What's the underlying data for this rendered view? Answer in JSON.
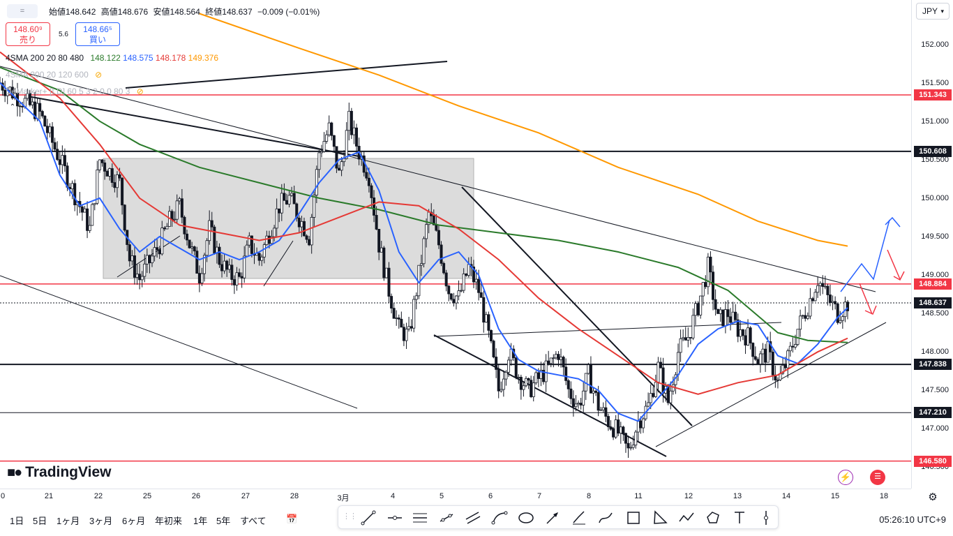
{
  "colors": {
    "sma200": "#2a7a2a",
    "sma20": "#2962ff",
    "sma80": "#e53935",
    "sma480": "#ff9800",
    "red_line": "#f23645",
    "black_line": "#131722",
    "box_fill": "#d6d6d6",
    "current": "#131722"
  },
  "header": {
    "symbol_icon": "=",
    "ohlc": {
      "open_label": "始値",
      "open": "148.642",
      "high_label": "高値",
      "high": "148.676",
      "low_label": "安値",
      "low": "148.564",
      "close_label": "終値",
      "close": "148.637",
      "change": "−0.009 (−0.01%)"
    },
    "sell_price": "148.60⁹",
    "sell_label": "売り",
    "buy_price": "148.66⁵",
    "buy_label": "買い",
    "spread": "5.6",
    "indicators": [
      {
        "name": "4SMA 200 20 80 480",
        "values": [
          "148.122",
          "148.575",
          "148.178",
          "149.376"
        ]
      },
      {
        "name": "4SMA 200 20 120 600",
        "values": []
      },
      {
        "name": "DeMarker+ [LD] 60 5 3 2 0 0 80 3",
        "values": []
      }
    ]
  },
  "currency": "JPY",
  "price_axis": {
    "ticks": [
      "152.000",
      "151.500",
      "151.000",
      "150.500",
      "150.000",
      "149.500",
      "149.000",
      "148.500",
      "148.000",
      "147.500",
      "147.000",
      "146.500"
    ],
    "tags": [
      {
        "label": "151.343",
        "color": "#f23645"
      },
      {
        "label": "150.608",
        "color": "#131722"
      },
      {
        "label": "148.884",
        "color": "#f23645"
      },
      {
        "label": "148.637",
        "color": "#131722"
      },
      {
        "label": "147.838",
        "color": "#131722"
      },
      {
        "label": "147.210",
        "color": "#131722"
      },
      {
        "label": "146.580",
        "color": "#f23645"
      }
    ]
  },
  "time_axis": [
    "0",
    "21",
    "22",
    "25",
    "26",
    "27",
    "28",
    "3月",
    "4",
    "5",
    "6",
    "7",
    "8",
    "11",
    "12",
    "13",
    "14",
    "15",
    "18"
  ],
  "brand": {
    "name": "TradingView"
  },
  "bottom": {
    "ranges": [
      "1日",
      "5日",
      "1ヶ月",
      "3ヶ月",
      "6ヶ月",
      "年初来",
      "1年",
      "5年",
      "すべて"
    ],
    "clock": "05:26:10 UTC+9"
  },
  "chart_data": {
    "type": "candlestick",
    "title": "",
    "ylim": [
      146.45,
      152.35
    ],
    "x_labels": [
      "0",
      "21",
      "22",
      "25",
      "26",
      "27",
      "28",
      "3月",
      "4",
      "5",
      "6",
      "7",
      "8",
      "11",
      "12",
      "13",
      "14",
      "15",
      "18"
    ],
    "horizontal_levels": [
      151.343,
      150.608,
      148.884,
      147.838,
      147.21,
      146.58
    ],
    "current_price": 148.637,
    "price_path": [
      [
        0,
        151.5
      ],
      [
        4,
        151.1
      ],
      [
        6,
        150.5
      ],
      [
        8,
        149.9
      ],
      [
        9,
        149.6
      ],
      [
        10,
        150.5
      ],
      [
        12,
        150.2
      ],
      [
        13,
        149.2
      ],
      [
        14,
        148.95
      ],
      [
        16,
        149.4
      ],
      [
        17,
        149.7
      ],
      [
        18,
        149.9
      ],
      [
        19,
        149.4
      ],
      [
        20,
        149.0
      ],
      [
        21,
        149.6
      ],
      [
        22,
        149.2
      ],
      [
        23,
        149.0
      ],
      [
        24,
        148.95
      ],
      [
        25,
        149.4
      ],
      [
        26,
        149.2
      ],
      [
        27,
        149.55
      ],
      [
        28,
        149.9
      ],
      [
        29,
        150.0
      ],
      [
        31,
        149.5
      ],
      [
        32,
        150.6
      ],
      [
        33,
        150.9
      ],
      [
        34,
        150.3
      ],
      [
        35,
        151.0
      ],
      [
        36,
        150.6
      ],
      [
        37,
        150.3
      ],
      [
        38,
        149.4
      ],
      [
        39,
        148.8
      ],
      [
        40,
        148.3
      ],
      [
        41,
        148.2
      ],
      [
        42,
        149.0
      ],
      [
        43,
        149.8
      ],
      [
        44,
        149.4
      ],
      [
        45,
        148.8
      ],
      [
        46,
        148.7
      ],
      [
        47,
        149.1
      ],
      [
        48,
        148.8
      ],
      [
        49,
        148.2
      ],
      [
        50,
        147.5
      ],
      [
        51,
        148.0
      ],
      [
        52,
        147.7
      ],
      [
        53,
        147.5
      ],
      [
        55,
        147.8
      ],
      [
        56,
        148.0
      ],
      [
        57,
        147.5
      ],
      [
        58,
        147.3
      ],
      [
        59,
        147.7
      ],
      [
        60,
        147.3
      ],
      [
        61,
        147.1
      ],
      [
        62,
        146.95
      ],
      [
        63,
        146.7
      ],
      [
        64,
        147.1
      ],
      [
        65,
        147.3
      ],
      [
        66,
        147.8
      ],
      [
        67,
        147.35
      ],
      [
        68,
        148.0
      ],
      [
        69,
        148.2
      ],
      [
        70,
        148.6
      ],
      [
        71,
        149.1
      ],
      [
        72,
        148.4
      ],
      [
        73,
        148.5
      ],
      [
        74,
        148.3
      ],
      [
        75,
        148.2
      ],
      [
        76,
        147.9
      ],
      [
        77,
        148.0
      ],
      [
        78,
        147.6
      ],
      [
        79,
        147.9
      ],
      [
        80,
        148.3
      ],
      [
        81,
        148.6
      ],
      [
        82,
        148.95
      ],
      [
        83,
        148.7
      ],
      [
        84,
        148.5
      ],
      [
        85,
        148.637
      ]
    ],
    "series": [
      {
        "name": "SMA 200",
        "color": "#2a7a2a",
        "values": [
          [
            0,
            151.7
          ],
          [
            6,
            151.4
          ],
          [
            10,
            151.0
          ],
          [
            14,
            150.7
          ],
          [
            20,
            150.4
          ],
          [
            26,
            150.2
          ],
          [
            32,
            150.0
          ],
          [
            38,
            149.85
          ],
          [
            44,
            149.65
          ],
          [
            50,
            149.55
          ],
          [
            56,
            149.45
          ],
          [
            62,
            149.3
          ],
          [
            68,
            149.1
          ],
          [
            73,
            148.8
          ],
          [
            78,
            148.25
          ],
          [
            81,
            148.15
          ],
          [
            85,
            148.122
          ]
        ]
      },
      {
        "name": "SMA 20",
        "color": "#2962ff",
        "values": [
          [
            0,
            151.5
          ],
          [
            4,
            151.0
          ],
          [
            6,
            150.3
          ],
          [
            8,
            149.9
          ],
          [
            10,
            150.0
          ],
          [
            12,
            149.6
          ],
          [
            14,
            149.3
          ],
          [
            16,
            149.5
          ],
          [
            18,
            149.35
          ],
          [
            20,
            149.2
          ],
          [
            22,
            149.3
          ],
          [
            24,
            149.2
          ],
          [
            26,
            149.3
          ],
          [
            28,
            149.45
          ],
          [
            30,
            149.8
          ],
          [
            32,
            150.2
          ],
          [
            34,
            150.5
          ],
          [
            36,
            150.6
          ],
          [
            38,
            150.1
          ],
          [
            40,
            149.3
          ],
          [
            42,
            148.9
          ],
          [
            44,
            149.2
          ],
          [
            46,
            149.3
          ],
          [
            48,
            149.0
          ],
          [
            50,
            148.3
          ],
          [
            52,
            147.9
          ],
          [
            54,
            147.75
          ],
          [
            56,
            147.7
          ],
          [
            58,
            147.65
          ],
          [
            60,
            147.5
          ],
          [
            62,
            147.2
          ],
          [
            64,
            147.1
          ],
          [
            66,
            147.4
          ],
          [
            68,
            147.7
          ],
          [
            70,
            148.1
          ],
          [
            72,
            148.3
          ],
          [
            74,
            148.4
          ],
          [
            76,
            148.35
          ],
          [
            78,
            147.95
          ],
          [
            80,
            147.85
          ],
          [
            82,
            148.1
          ],
          [
            84,
            148.45
          ],
          [
            85,
            148.575
          ]
        ]
      },
      {
        "name": "SMA 80",
        "color": "#e53935",
        "values": [
          [
            0,
            151.9
          ],
          [
            6,
            151.3
          ],
          [
            10,
            150.7
          ],
          [
            14,
            150.0
          ],
          [
            18,
            149.65
          ],
          [
            22,
            149.55
          ],
          [
            26,
            149.45
          ],
          [
            30,
            149.55
          ],
          [
            34,
            149.75
          ],
          [
            38,
            149.95
          ],
          [
            42,
            149.9
          ],
          [
            46,
            149.6
          ],
          [
            50,
            149.2
          ],
          [
            54,
            148.7
          ],
          [
            58,
            148.3
          ],
          [
            62,
            147.95
          ],
          [
            66,
            147.6
          ],
          [
            70,
            147.45
          ],
          [
            74,
            147.6
          ],
          [
            78,
            147.7
          ],
          [
            82,
            148.0
          ],
          [
            85,
            148.178
          ]
        ]
      },
      {
        "name": "SMA 480",
        "color": "#ff9800",
        "values": [
          [
            20,
            152.4
          ],
          [
            30,
            151.95
          ],
          [
            38,
            151.6
          ],
          [
            46,
            151.2
          ],
          [
            54,
            150.85
          ],
          [
            62,
            150.4
          ],
          [
            70,
            150.05
          ],
          [
            76,
            149.7
          ],
          [
            82,
            149.45
          ],
          [
            85,
            149.376
          ]
        ]
      }
    ]
  }
}
